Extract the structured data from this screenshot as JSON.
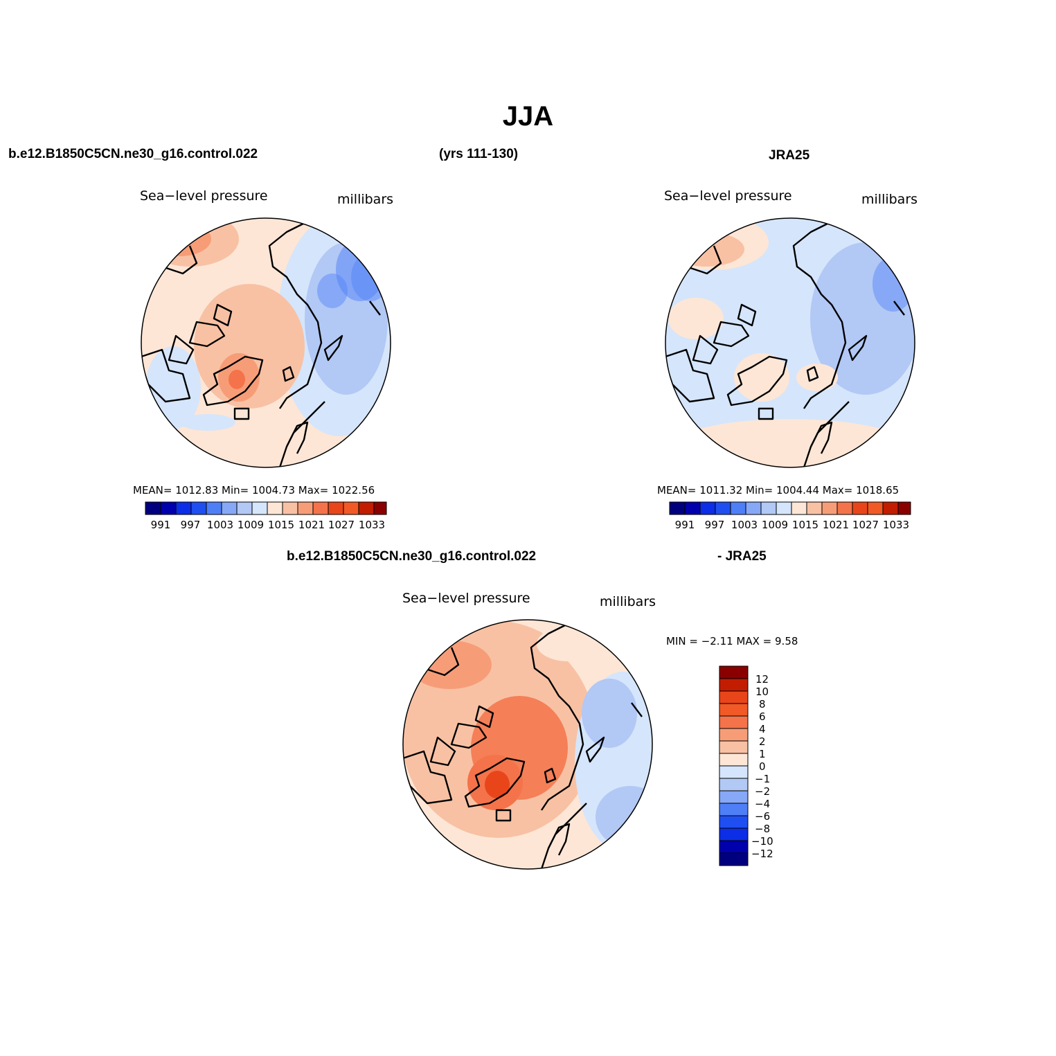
{
  "figure": {
    "title": "JJA",
    "header_left": "b.e12.B1850C5CN.ne30_g16.control.022",
    "header_middle": "(yrs 111-130)",
    "header_right": "JRA25",
    "diff_header_left": "b.e12.B1850C5CN.ne30_g16.control.022",
    "diff_header_right": "- JRA25"
  },
  "palette": {
    "levels_colors": [
      "#00007f",
      "#0000ad",
      "#0b2ee6",
      "#1f4ff0",
      "#4f7ff7",
      "#86a8f7",
      "#b2c8f5",
      "#d5e5fb",
      "#fde6d6",
      "#f8c1a4",
      "#f69d78",
      "#f4734a",
      "#e8461a",
      "#c21d00",
      "#8a0000"
    ],
    "diff_colors": [
      "#8a0000",
      "#c21d00",
      "#e8461a",
      "#f15a26",
      "#f4734a",
      "#f69d78",
      "#f8c1a4",
      "#fde6d6",
      "#d5e5fb",
      "#b2c8f5",
      "#86a8f7",
      "#4f7ff7",
      "#1f4ff0",
      "#0b2ee6",
      "#0000ad",
      "#00007f"
    ],
    "coastline": "#000000"
  },
  "panels": [
    {
      "id": "model",
      "variable": "Sea−level pressure",
      "units": "millibars",
      "stats": "MEAN= 1012.83   Min= 1004.73   Max= 1022.56",
      "colorbar_labels": [
        "991",
        "997",
        "1003",
        "1009",
        "1015",
        "1021",
        "1027",
        "1033"
      ]
    },
    {
      "id": "obs",
      "variable": "Sea−level pressure",
      "units": "millibars",
      "stats": "MEAN= 1011.32   Min= 1004.44   Max= 1018.65",
      "colorbar_labels": [
        "991",
        "997",
        "1003",
        "1009",
        "1015",
        "1021",
        "1027",
        "1033"
      ]
    },
    {
      "id": "diff",
      "variable": "Sea−level pressure",
      "units": "millibars",
      "stats": "MIN =   −2.11  MAX =     9.58",
      "colorbar_labels": [
        "12",
        "10",
        "8",
        "6",
        "4",
        "2",
        "1",
        "0",
        "−1",
        "−2",
        "−4",
        "−6",
        "−8",
        "−10",
        "−12"
      ]
    }
  ]
}
